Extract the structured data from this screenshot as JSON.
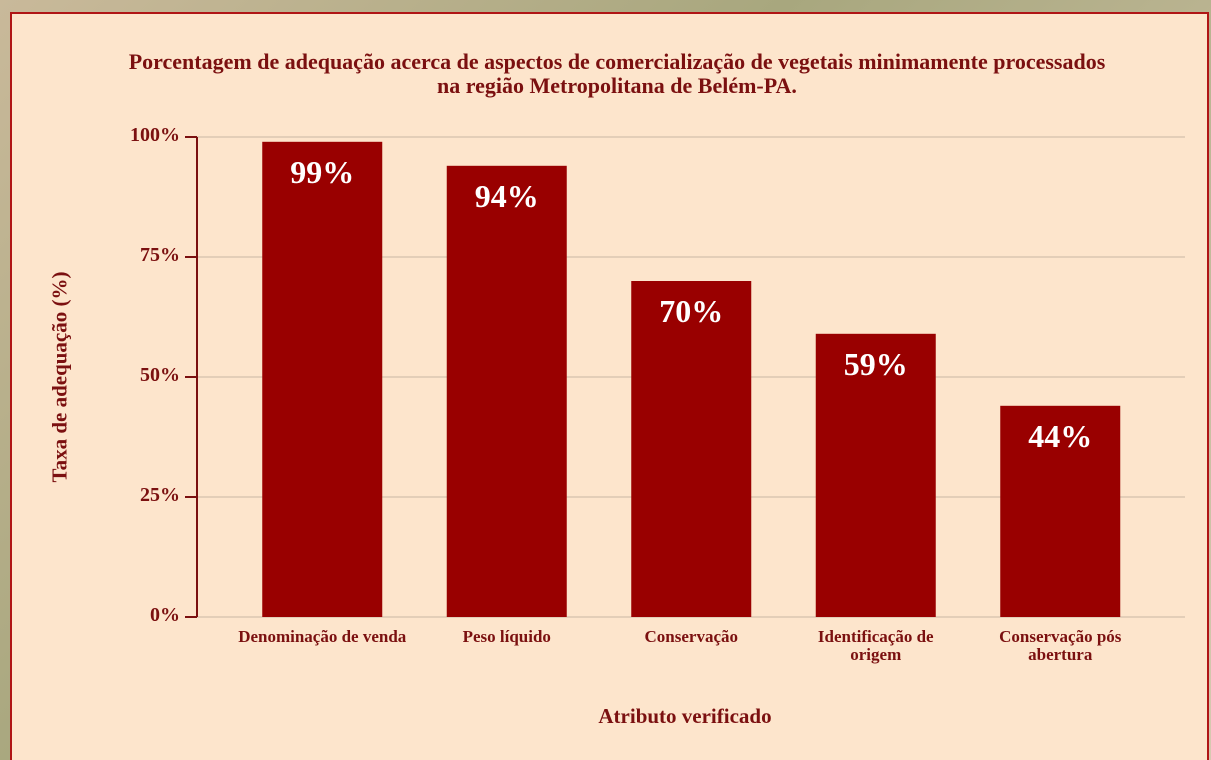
{
  "chart_data": {
    "type": "bar",
    "title": "Porcentagem de adequação acerca de aspectos de comercialização de vegetais minimamente processados na região Metropolitana de Belém-PA.",
    "xlabel": "Atributo verificado",
    "ylabel": "Taxa de adequação (%)",
    "categories": [
      "Denominação de venda",
      "Peso líquido",
      "Conservação",
      "Identificação de origem",
      "Conservação pós abertura"
    ],
    "values": [
      99,
      94,
      70,
      59,
      44
    ],
    "value_labels": [
      "99%",
      "94%",
      "70%",
      "59%",
      "44%"
    ],
    "color": "#990000",
    "ylim": [
      0,
      100
    ],
    "yticks": [
      {
        "value": 0,
        "label": "0%"
      },
      {
        "value": 25,
        "label": "25%"
      },
      {
        "value": 50,
        "label": "50%"
      },
      {
        "value": 75,
        "label": "75%"
      },
      {
        "value": 100,
        "label": "100%"
      }
    ],
    "grid": true
  }
}
